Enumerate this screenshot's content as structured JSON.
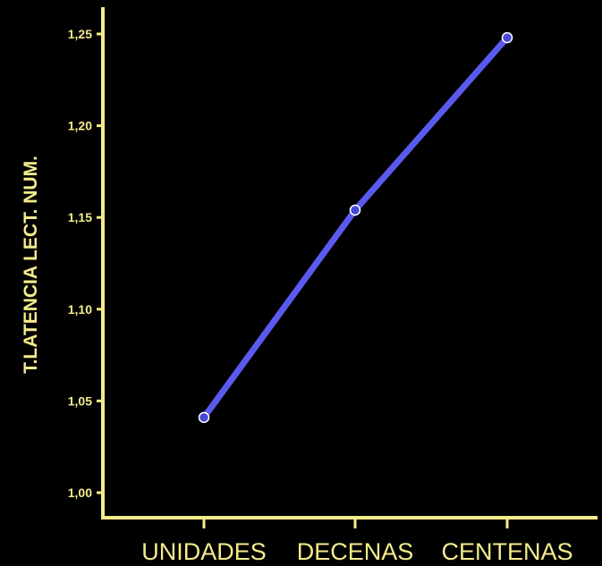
{
  "chart_data": {
    "type": "line",
    "categories": [
      "UNIDADES",
      "DECENAS",
      "CENTENAS"
    ],
    "series": [
      {
        "values": [
          1.041,
          1.154,
          1.248
        ]
      }
    ],
    "yticks": [
      "1,00",
      "1,05",
      "1,10",
      "1,15",
      "1,20",
      "1,25"
    ],
    "ytick_values": [
      1.0,
      1.05,
      1.1,
      1.15,
      1.2,
      1.25
    ],
    "ylim": [
      0.99,
      1.262
    ],
    "xlabel": "",
    "ylabel": "T.LATENCIA LECT. NUM.",
    "grid": false,
    "colors": {
      "axis": "#f4ec8c",
      "line": "#5a5af0",
      "background": "#000000"
    }
  }
}
